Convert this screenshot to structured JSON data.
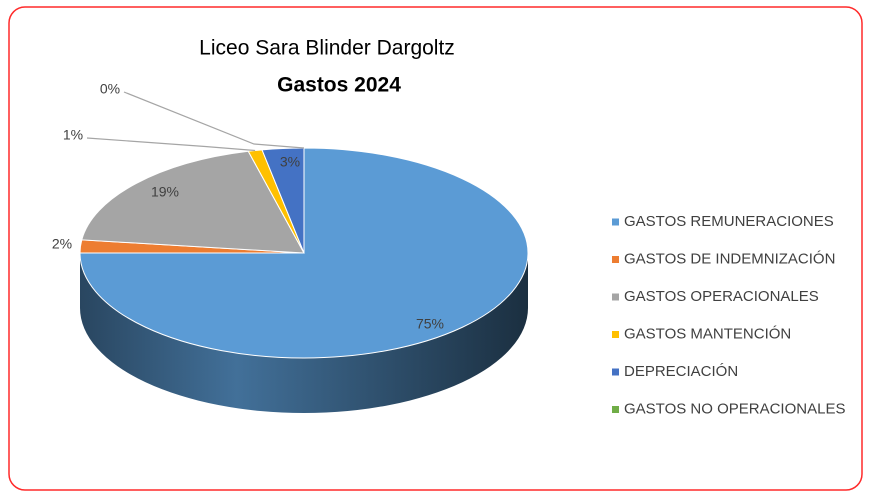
{
  "chart_data": {
    "type": "pie3d",
    "title": "Liceo Sara Blinder Dargoltz",
    "subtitle": "Gastos 2024",
    "categories": [
      "GASTOS REMUNERACIONES",
      "GASTOS DE INDEMNIZACIÓN",
      "GASTOS OPERACIONALES",
      "GASTOS MANTENCIÓN",
      "DEPRECIACIÓN",
      "GASTOS NO OPERACIONALES"
    ],
    "values": [
      75,
      2,
      19,
      1,
      3,
      0
    ],
    "value_labels": [
      "75%",
      "2%",
      "19%",
      "1%",
      "3%",
      "0%"
    ],
    "colors": [
      "#5b9bd5",
      "#ed7d31",
      "#a5a5a5",
      "#ffc000",
      "#4472c4",
      "#70ad47"
    ],
    "legend": "right"
  }
}
